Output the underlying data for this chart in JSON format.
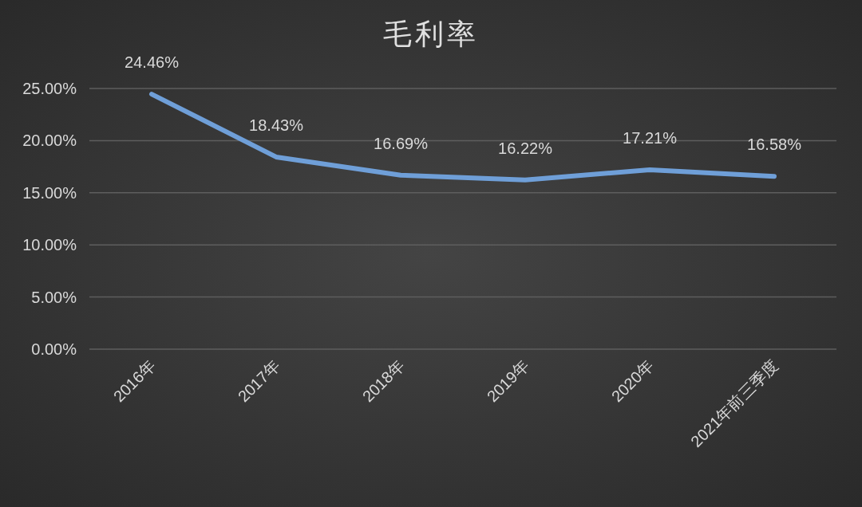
{
  "chart_data": {
    "type": "line",
    "title": "毛利率",
    "categories": [
      "2016年",
      "2017年",
      "2018年",
      "2019年",
      "2020年",
      "2021年前三季度"
    ],
    "values": [
      24.46,
      18.43,
      16.69,
      16.22,
      17.21,
      16.58
    ],
    "value_labels": [
      "24.46%",
      "18.43%",
      "16.69%",
      "16.22%",
      "17.21%",
      "16.58%"
    ],
    "color": "#6f9fd8",
    "ylim": [
      0,
      25
    ],
    "yticks": [
      {
        "value": 0,
        "label": "0.00%"
      },
      {
        "value": 5,
        "label": "5.00%"
      },
      {
        "value": 10,
        "label": "10.00%"
      },
      {
        "value": 15,
        "label": "15.00%"
      },
      {
        "value": 20,
        "label": "20.00%"
      },
      {
        "value": 25,
        "label": "25.00%"
      }
    ],
    "grid": "y"
  }
}
